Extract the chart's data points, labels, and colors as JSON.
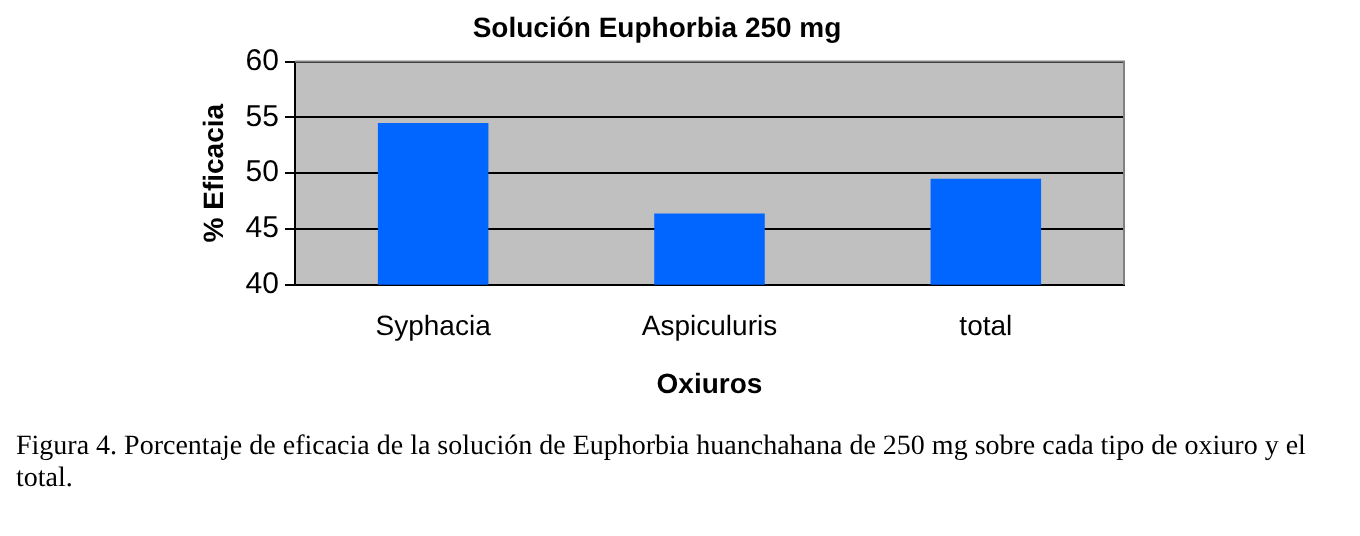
{
  "chart_data": {
    "type": "bar",
    "title": "Solución Euphorbia 250 mg",
    "categories": [
      "Syphacia",
      "Aspiculuris",
      "total"
    ],
    "values": [
      54.5,
      46.4,
      49.5
    ],
    "color": "#0066ff",
    "xlabel": "Oxiuros",
    "ylabel": "% Eficacia",
    "ylim": [
      40,
      60
    ],
    "yticks": [
      40,
      45,
      50,
      55,
      60
    ],
    "grid": "y",
    "legend": false,
    "annotations": [
      "Figura 4.  Porcentaje de eficacia de la solución de Euphorbia huanchahana de 250 mg sobre cada  tipo de oxiuro y el total."
    ]
  }
}
